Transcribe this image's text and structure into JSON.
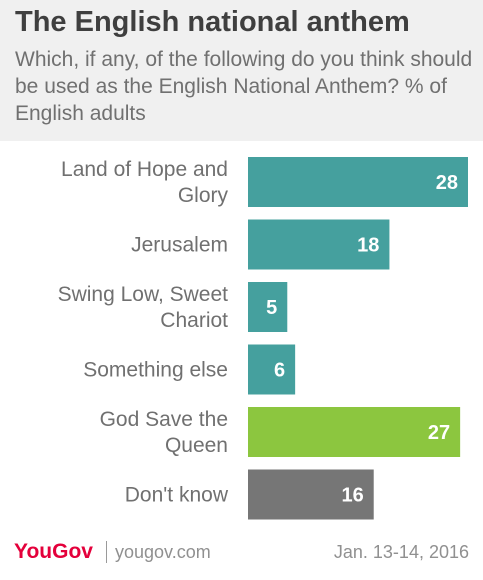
{
  "header": {
    "title": "The English national anthem",
    "subtitle": "Which, if any, of the following do you think should be used as the English National Anthem? % of English adults"
  },
  "chart_data": {
    "type": "bar",
    "orientation": "horizontal",
    "categories": [
      [
        "Land of Hope and",
        "Glory"
      ],
      [
        "Jerusalem"
      ],
      [
        "Swing Low, Sweet",
        "Chariot"
      ],
      [
        "Something else"
      ],
      [
        "God Save the",
        "Queen"
      ],
      [
        "Don't know"
      ]
    ],
    "values": [
      28,
      18,
      5,
      6,
      27,
      16
    ],
    "bar_colors": [
      "#45a09e",
      "#45a09e",
      "#45a09e",
      "#45a09e",
      "#8cc63f",
      "#767676"
    ],
    "xlim": [
      0,
      28
    ],
    "grid": false,
    "data_labels": true
  },
  "footer": {
    "brand": "YouGov",
    "site": "yougov.com",
    "date": "Jan. 13-14, 2016"
  }
}
